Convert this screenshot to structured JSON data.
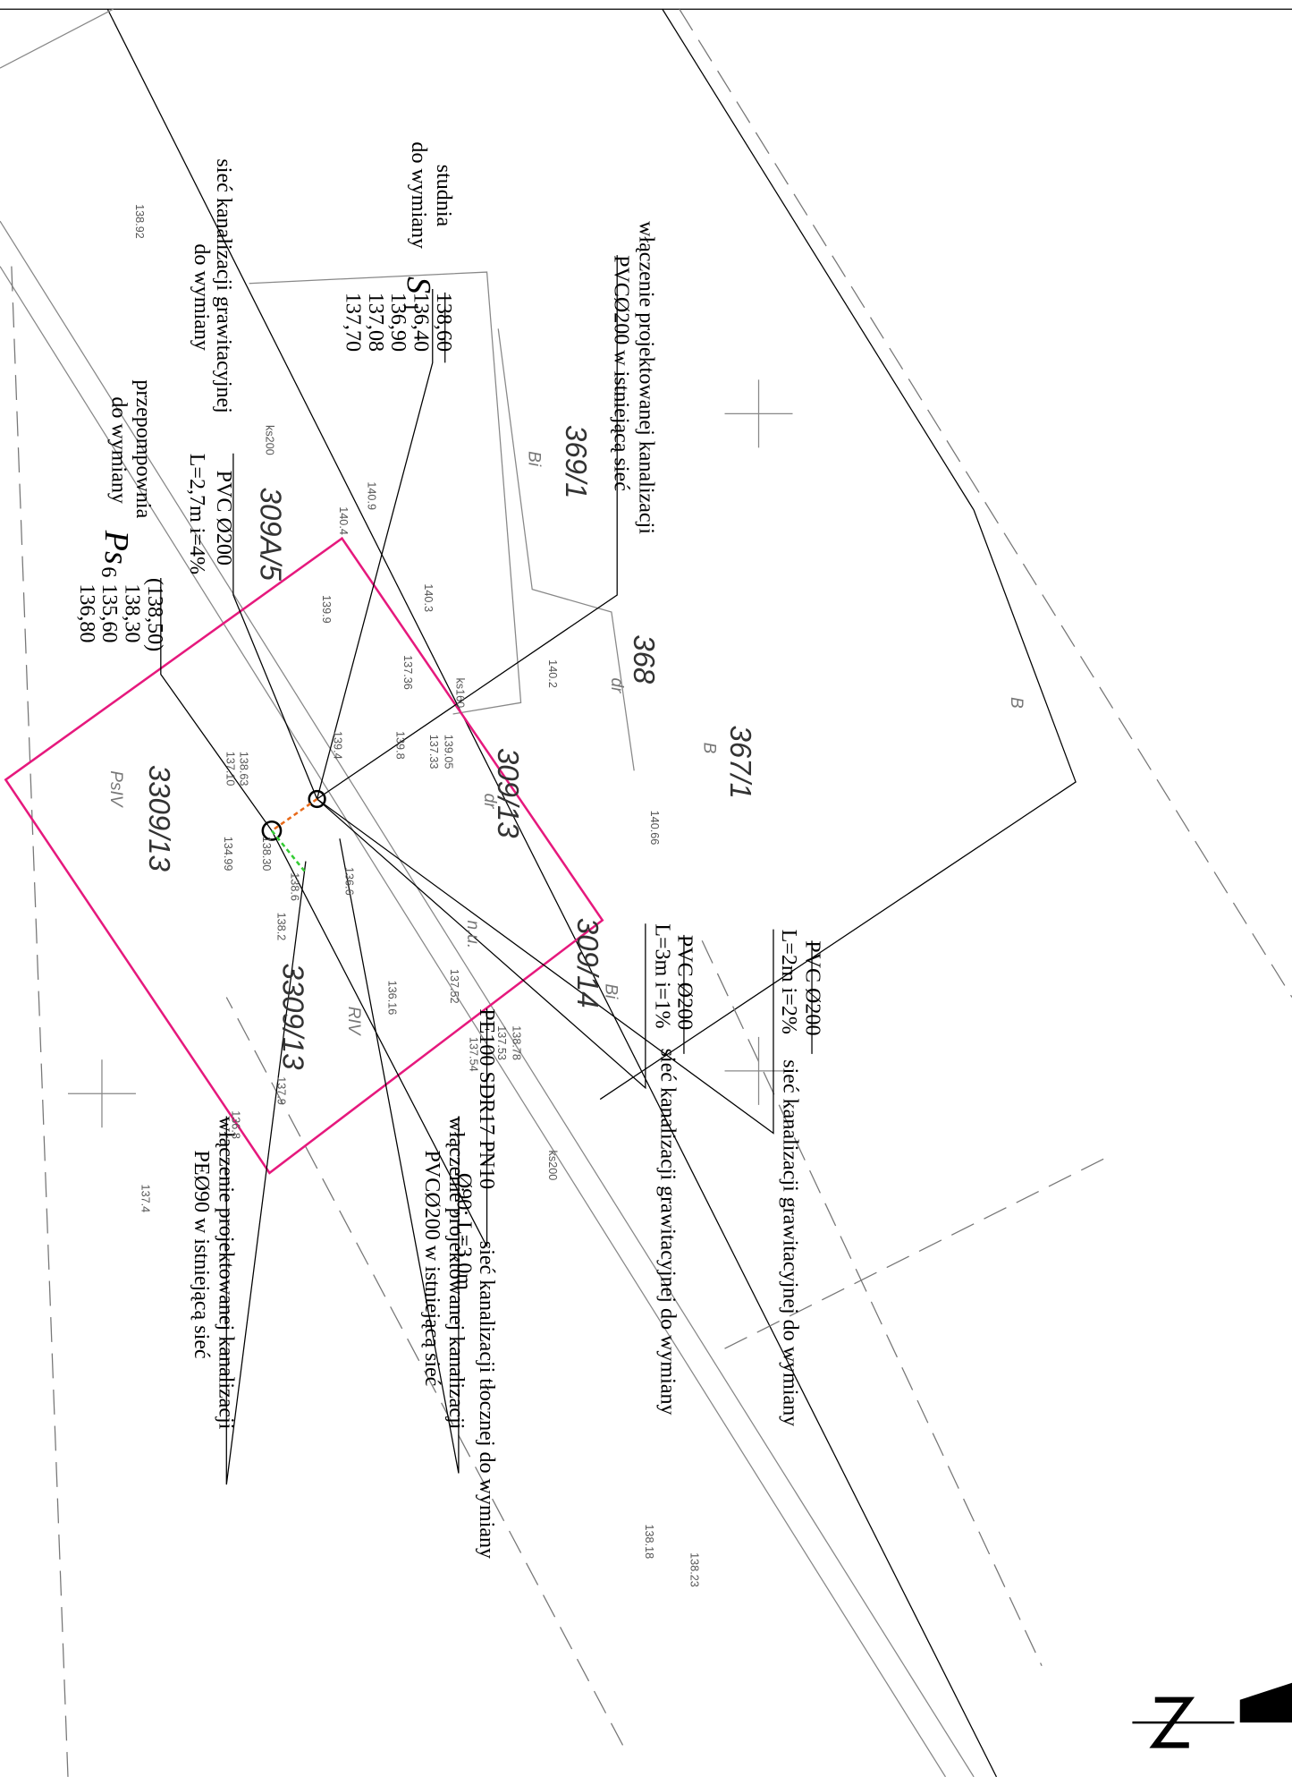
{
  "connection_top": [
    "włączenie projektowanej kanalizacji",
    "PVCØ200 w istniejącą sieć"
  ],
  "well_s1": {
    "title": [
      "studnia",
      "do wymiany"
    ],
    "symbol": "S",
    "number": "1",
    "levels": [
      "138,60",
      "136,40",
      "136,90",
      "137,08",
      "137,70"
    ]
  },
  "gravity_sewer": [
    "sieć kanalizacji grawitacyjnej",
    "PVC Ø200",
    "do wymiany",
    "L=2,7m i=4%"
  ],
  "pump_station": {
    "title": [
      "przepompownia",
      "do wymiany"
    ],
    "symbol": "Ps",
    "number": "6",
    "levels": [
      "(138,50)",
      "138,30",
      "135,60",
      "136,80"
    ]
  },
  "pipe_a": [
    "PVC Ø200",
    "L=2m i=2%",
    "sieć kanalizacji grawitacyjnej do wymiany"
  ],
  "pipe_b": [
    "PVC Ø200",
    "L=3m i=1%",
    "sieć kanalizacji grawitacyjnej do wymiany"
  ],
  "connection_mid": [
    "włączenie projektowanej kanalizacji",
    "PVCØ200 w istniejącą sieć"
  ],
  "connection_pe": [
    "włączenie projektowanej kanalizacji",
    "PEØ90 w istniejącą sieć"
  ],
  "pressure_pipe": [
    "PE100 SDR17 PN10",
    "Ø90; L=3,0m",
    "sieć kanalizacji tłocznej do wymiany"
  ],
  "parcels": [
    "369/1",
    "368",
    "367/1",
    "309A/5",
    "3309/13",
    "309/13",
    "309/14",
    "3309/13"
  ],
  "land_classes": [
    "Bi",
    "dr",
    "B",
    "B",
    "PsIV",
    "dr",
    "Bi",
    "RIV",
    "n.u."
  ],
  "elevations": [
    "138.92",
    "140.9",
    "140.4",
    "139.9",
    "140.3",
    "140.2",
    "137.36",
    "139.05",
    "137.33",
    "139.4",
    "139.8",
    "138.63",
    "137.10",
    "138.30",
    "134.99",
    "140.66",
    "136.6",
    "138.6",
    "138.2",
    "137.52",
    "136.16",
    "138.78",
    "137.53",
    "137.54",
    "137.9",
    "136.8",
    "137.4",
    "138.23",
    "138.18"
  ],
  "utility_codes": [
    "ks200",
    "ks160",
    "ks200"
  ]
}
